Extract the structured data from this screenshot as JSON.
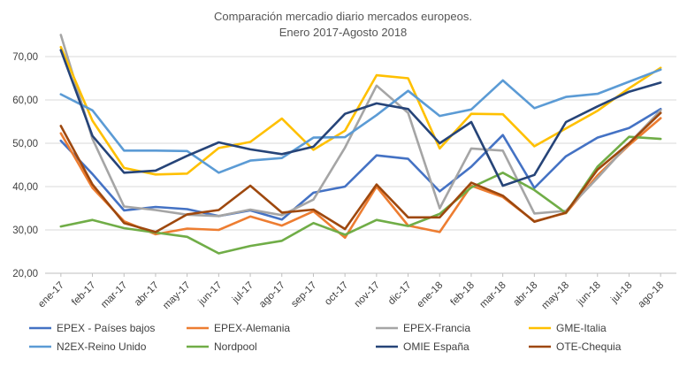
{
  "chart_data": {
    "type": "line",
    "title": "Comparación mercadio diario mercados europeos.",
    "subtitle": "Enero 2017-Agosto 2018",
    "xlabel": "",
    "ylabel": "",
    "ylim": [
      20,
      75
    ],
    "yticks": [
      "20,00",
      "30,00",
      "40,00",
      "50,00",
      "60,00",
      "70,00"
    ],
    "grid": true,
    "legend_position": "bottom",
    "categories": [
      "ene-17",
      "feb-17",
      "mar-17",
      "abr-17",
      "may-17",
      "jun-17",
      "jul-17",
      "ago-17",
      "sep-17",
      "oct-17",
      "nov-17",
      "dic-17",
      "ene-18",
      "feb-18",
      "mar-18",
      "abr-18",
      "may-18",
      "jun-18",
      "jul-18",
      "ago-18"
    ],
    "series": [
      {
        "name": "EPEX - Países bajos",
        "color": "#4472C4",
        "values": [
          50.6,
          42.9,
          34.5,
          35.3,
          34.8,
          33.2,
          34.5,
          32.4,
          38.6,
          40.0,
          47.2,
          46.4,
          38.9,
          44.6,
          51.9,
          39.7,
          47.0,
          51.3,
          53.5,
          57.9
        ]
      },
      {
        "name": "EPEX-Alemania",
        "color": "#ED7D31",
        "values": [
          52.3,
          39.7,
          32.0,
          29.0,
          30.3,
          30.0,
          33.1,
          31.0,
          34.3,
          28.2,
          40.0,
          31.0,
          29.5,
          40.2,
          37.6,
          32.0,
          33.9,
          42.6,
          49.6,
          55.8
        ]
      },
      {
        "name": "EPEX-Francia",
        "color": "#A5A5A5",
        "values": [
          75.0,
          51.0,
          35.4,
          34.6,
          33.5,
          33.2,
          34.7,
          33.4,
          37.0,
          49.0,
          63.3,
          57.0,
          35.0,
          48.8,
          48.3,
          33.8,
          34.4,
          42.0,
          50.0,
          57.6
        ]
      },
      {
        "name": "GME-Italia",
        "color": "#FFC000",
        "values": [
          72.2,
          55.2,
          44.3,
          42.8,
          43.0,
          48.9,
          50.3,
          55.7,
          48.5,
          52.9,
          65.7,
          65.0,
          48.8,
          56.8,
          56.7,
          49.3,
          53.4,
          57.5,
          62.7,
          67.4
        ]
      },
      {
        "name": "N2EX-Reino Unido",
        "color": "#5B9BD5",
        "values": [
          61.3,
          57.6,
          48.3,
          48.3,
          48.2,
          43.2,
          46.0,
          46.6,
          51.3,
          51.4,
          56.5,
          62.1,
          56.3,
          57.8,
          64.5,
          58.1,
          60.7,
          61.4,
          64.2,
          67.0
        ]
      },
      {
        "name": "Nordpool",
        "color": "#70AD47",
        "values": [
          30.8,
          32.3,
          30.4,
          29.4,
          28.4,
          24.6,
          26.3,
          27.5,
          31.6,
          28.9,
          32.3,
          30.9,
          33.7,
          39.8,
          43.2,
          39.2,
          33.9,
          44.6,
          51.5,
          51.0
        ]
      },
      {
        "name": "OMIE España",
        "color": "#264478",
        "values": [
          71.5,
          51.7,
          43.2,
          43.7,
          47.1,
          50.2,
          48.6,
          47.5,
          49.2,
          56.8,
          59.2,
          57.9,
          50.0,
          54.9,
          40.2,
          42.7,
          54.9,
          58.5,
          61.9,
          64.0
        ]
      },
      {
        "name": "OTE-Chequia",
        "color": "#9E480E",
        "values": [
          54.0,
          40.5,
          31.6,
          29.5,
          33.6,
          34.6,
          40.2,
          34.0,
          34.7,
          30.2,
          40.5,
          32.9,
          32.9,
          40.9,
          37.9,
          31.9,
          34.0,
          43.9,
          50.0,
          57.0
        ]
      }
    ]
  }
}
